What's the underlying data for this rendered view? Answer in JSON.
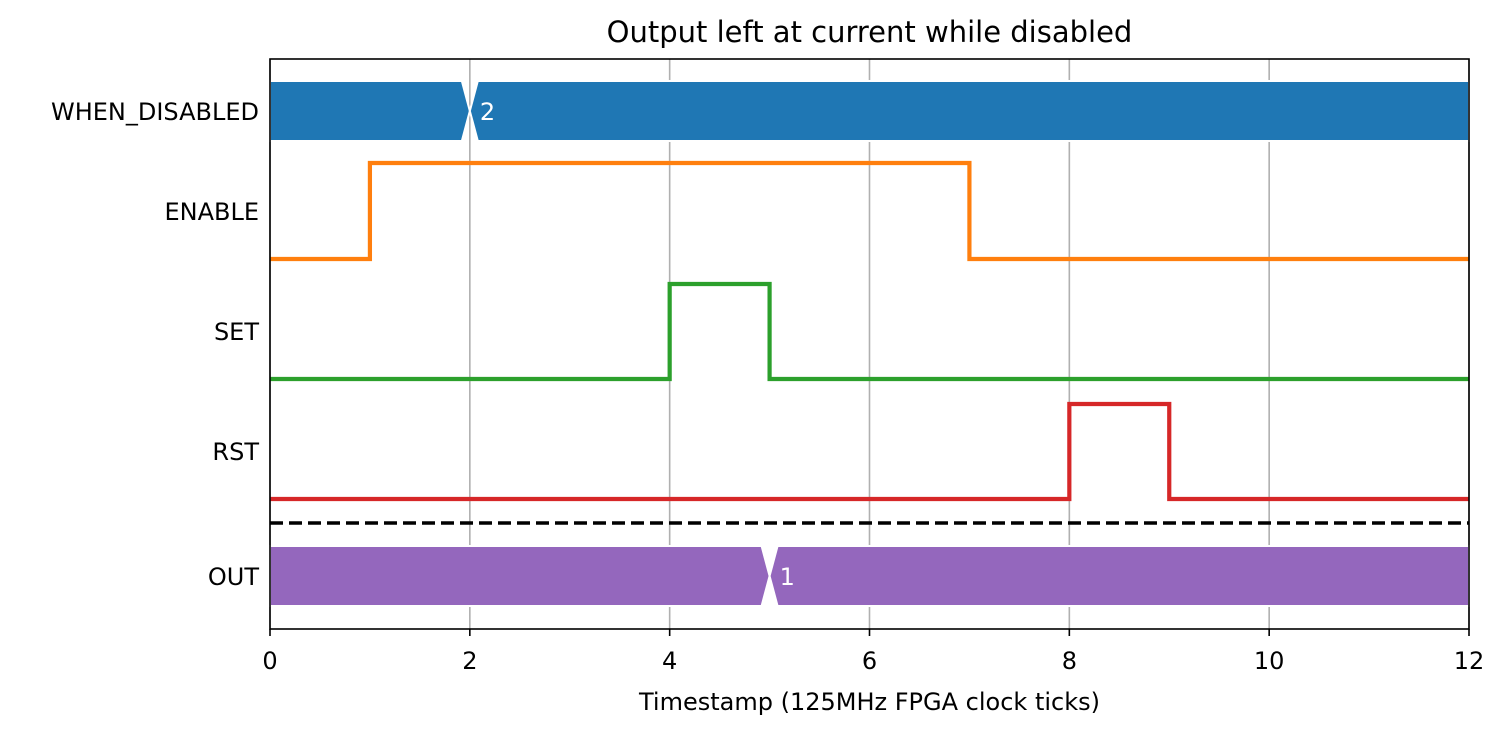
{
  "chart_data": {
    "type": "line",
    "title": "Output left at current while disabled",
    "xlabel": "Timestamp (125MHz FPGA clock ticks)",
    "ylabel": "",
    "xlim": [
      0,
      12
    ],
    "xticks": [
      "0",
      "2",
      "4",
      "6",
      "8",
      "10",
      "12"
    ],
    "grid": "vertical",
    "signals": [
      {
        "name": "WHEN_DISABLED",
        "kind": "bus",
        "color": "#1f77b4",
        "segments": [
          {
            "start": 0,
            "end": 2,
            "label": ""
          },
          {
            "start": 2,
            "end": 12,
            "label": "2"
          }
        ]
      },
      {
        "name": "ENABLE",
        "kind": "digital",
        "color": "#ff7f0e",
        "x": [
          0,
          1,
          7,
          12
        ],
        "values": [
          0,
          1,
          0,
          0
        ]
      },
      {
        "name": "SET",
        "kind": "digital",
        "color": "#2ca02c",
        "x": [
          0,
          4,
          5,
          12
        ],
        "values": [
          0,
          1,
          0,
          0
        ]
      },
      {
        "name": "RST",
        "kind": "digital",
        "color": "#d62728",
        "x": [
          0,
          8,
          9,
          12
        ],
        "values": [
          0,
          1,
          0,
          0
        ]
      },
      {
        "name": "OUT",
        "kind": "bus",
        "color": "#9467bd",
        "segments": [
          {
            "start": 0,
            "end": 5,
            "label": ""
          },
          {
            "start": 5,
            "end": 12,
            "label": "1"
          }
        ]
      }
    ],
    "separator": {
      "after_signal": "RST",
      "style": "dashed",
      "color": "#000000"
    }
  }
}
